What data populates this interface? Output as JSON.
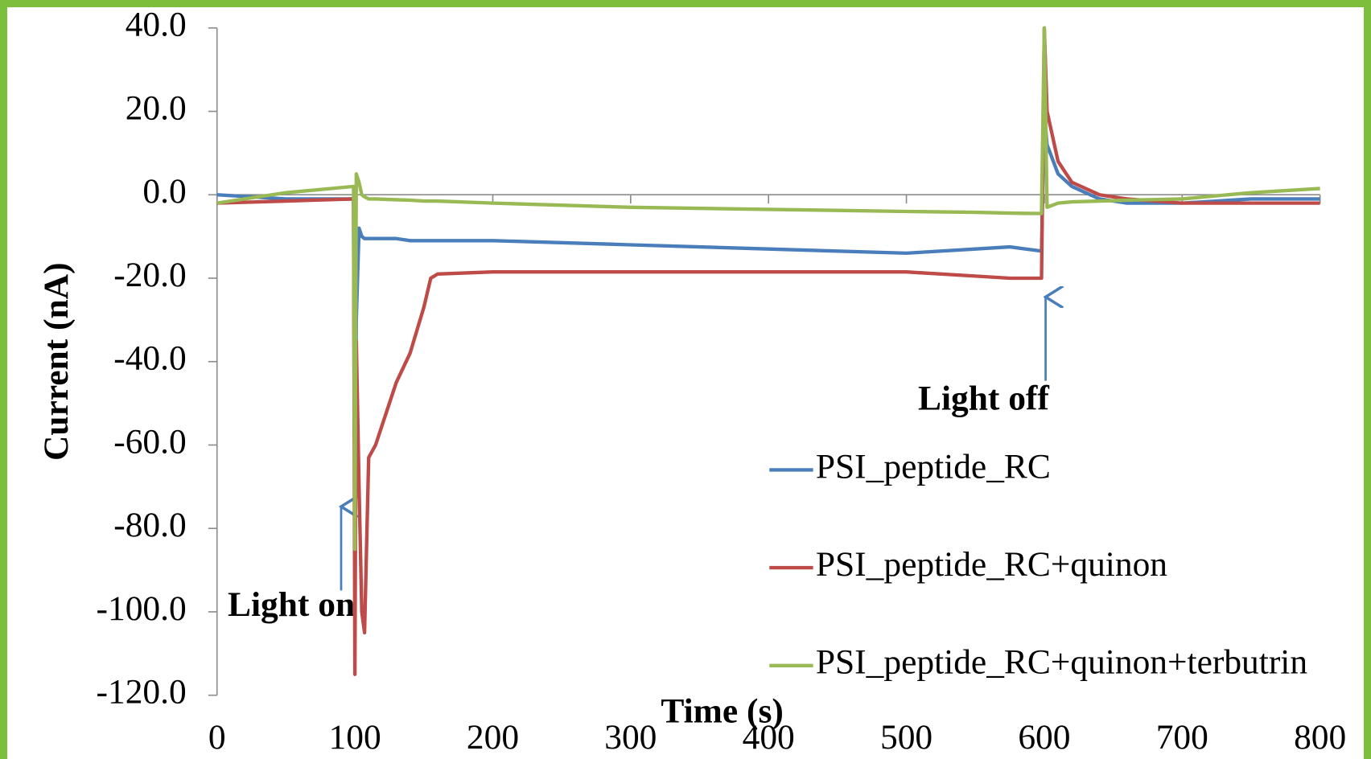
{
  "chart_data": {
    "type": "line",
    "x_label": "Time (s)",
    "y_label": "Current (nA)",
    "x": [
      0,
      50,
      99,
      100,
      101,
      103,
      105,
      107,
      110,
      115,
      130,
      140,
      150,
      155,
      160,
      200,
      300,
      400,
      500,
      550,
      575,
      598,
      600,
      602,
      610,
      620,
      640,
      660,
      700,
      750,
      800
    ],
    "series": [
      {
        "name": "PSI_peptide_RC",
        "color": "#4a7ebb",
        "values": [
          0,
          -1,
          -1,
          -85,
          -30,
          -8,
          -10,
          -10.5,
          -10.5,
          -10.5,
          -10.5,
          -11,
          -11,
          -11,
          -11,
          -11,
          -12,
          -13,
          -14,
          -13,
          -12.5,
          -13.5,
          20,
          12,
          5,
          2,
          -1,
          -2,
          -2,
          -1,
          -1
        ]
      },
      {
        "name": "PSI_peptide_RC+quinon",
        "color": "#be4b48",
        "values": [
          -2,
          -1.5,
          -1,
          -115,
          -35,
          -70,
          -100,
          -105,
          -63,
          -60,
          -45,
          -38,
          -27,
          -20,
          -19,
          -18.5,
          -18.5,
          -18.5,
          -18.5,
          -19.5,
          -20,
          -20,
          40,
          20,
          8,
          3,
          0,
          -1,
          -2,
          -2,
          -2
        ]
      },
      {
        "name": "PSI_peptide_RC+quinon+terbutrin",
        "color": "#98b954",
        "values": [
          -2,
          0.5,
          2,
          -85,
          5,
          3,
          0,
          -0.5,
          -1,
          -1,
          -1.2,
          -1.3,
          -1.5,
          -1.5,
          -1.5,
          -2,
          -3,
          -3.5,
          -4,
          -4.2,
          -4.4,
          -4.5,
          40,
          -3,
          -2,
          -1.7,
          -1.5,
          -1.3,
          -1,
          0.5,
          1.5
        ]
      }
    ],
    "xlim": [
      0,
      800
    ],
    "xticks": [
      0,
      100,
      200,
      300,
      400,
      500,
      600,
      700,
      800
    ],
    "ylim": [
      -120,
      40
    ],
    "yticks": [
      {
        "value": -120,
        "label": "-120.0"
      },
      {
        "value": -100,
        "label": "-100.0"
      },
      {
        "value": -80,
        "label": "-80.0"
      },
      {
        "value": -60,
        "label": "-60.0"
      },
      {
        "value": -40,
        "label": "-40.0"
      },
      {
        "value": -20,
        "label": "-20.0"
      },
      {
        "value": 0,
        "label": "0.0"
      },
      {
        "value": 20,
        "label": "20.0"
      },
      {
        "value": 40,
        "label": "40.0"
      }
    ],
    "grid": false,
    "legend": "right",
    "annotations": [
      {
        "text": "Light on"
      },
      {
        "text": "Light off"
      }
    ]
  }
}
